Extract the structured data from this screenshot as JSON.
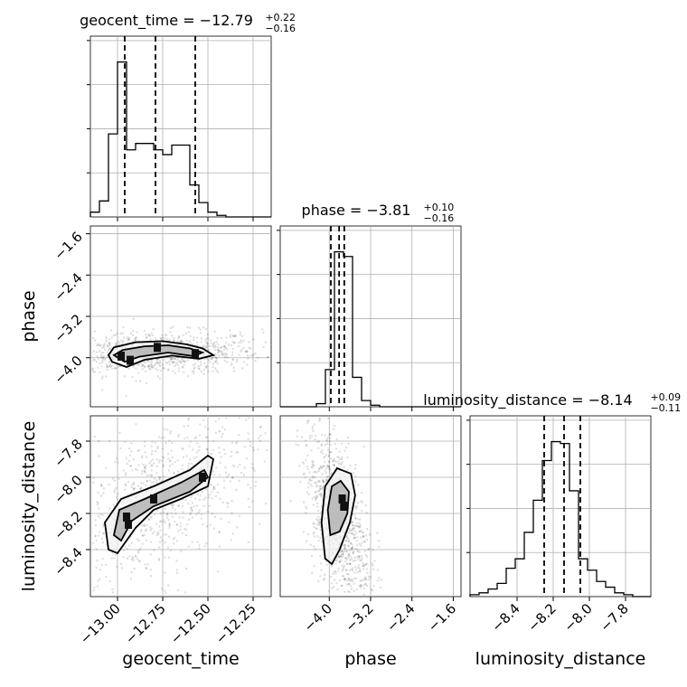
{
  "chart_data": {
    "type": "corner",
    "grid": true,
    "parameters": [
      {
        "name": "geocent_time",
        "median": "−12.79",
        "plus": "+0.22",
        "minus": "−0.16",
        "quantiles": [
          -12.96,
          -12.79,
          -12.57
        ],
        "range": [
          -13.15,
          -12.15
        ],
        "ticks": [
          -13.0,
          -12.75,
          -12.5,
          -12.25
        ],
        "tick_labels": [
          "−13.00",
          "−12.75",
          "−12.50",
          "−12.25"
        ]
      },
      {
        "name": "phase",
        "median": "−3.81",
        "plus": "+0.10",
        "minus": "−0.16",
        "quantiles": [
          -3.97,
          -3.81,
          -3.71
        ],
        "range": [
          -4.95,
          -1.45
        ],
        "ticks": [
          -4.0,
          -3.2,
          -2.4,
          -1.6
        ],
        "tick_labels": [
          "−4.0",
          "−3.2",
          "−2.4",
          "−1.6"
        ]
      },
      {
        "name": "luminosity_distance",
        "median": "−8.14",
        "plus": "+0.09",
        "minus": "−0.11",
        "quantiles": [
          -8.25,
          -8.14,
          -8.05
        ],
        "range": [
          -8.66,
          -7.66
        ],
        "ticks": [
          -8.4,
          -8.2,
          -8.0,
          -7.8
        ],
        "tick_labels": [
          "−8.4",
          "−8.2",
          "−8.0",
          "−7.8"
        ]
      }
    ],
    "histograms": [
      {
        "parameter": "geocent_time",
        "bin_edges": [
          -13.15,
          -13.1,
          -13.05,
          -13.0,
          -12.95,
          -12.9,
          -12.85,
          -12.8,
          -12.75,
          -12.7,
          -12.65,
          -12.6,
          -12.55,
          -12.5,
          -12.45,
          -12.4,
          -12.35,
          -12.3,
          -12.25,
          -12.2,
          -12.15
        ],
        "counts": [
          3,
          10,
          52,
          97,
          42,
          46,
          46,
          42,
          39,
          45,
          45,
          20,
          9,
          3,
          1,
          0,
          0,
          0,
          0,
          0
        ]
      },
      {
        "parameter": "phase",
        "bin_edges": [
          -4.95,
          -4.775,
          -4.6,
          -4.425,
          -4.25,
          -4.075,
          -3.9,
          -3.725,
          -3.55,
          -3.375,
          -3.2,
          -3.025,
          -2.85,
          -2.675,
          -2.5,
          -2.325,
          -2.15,
          -1.975,
          -1.8,
          -1.625,
          -1.45
        ],
        "counts": [
          0,
          0,
          0,
          0,
          2,
          24,
          100,
          97,
          19,
          4,
          1,
          0,
          0,
          0,
          0,
          0,
          0,
          0,
          0,
          0
        ]
      },
      {
        "parameter": "luminosity_distance",
        "bin_edges": [
          -8.66,
          -8.61,
          -8.56,
          -8.51,
          -8.46,
          -8.41,
          -8.36,
          -8.31,
          -8.26,
          -8.21,
          -8.16,
          -8.11,
          -8.06,
          -8.01,
          -7.96,
          -7.91,
          -7.86,
          -7.81,
          -7.76,
          -7.71,
          -7.66
        ],
        "counts": [
          1,
          2,
          4,
          7,
          15,
          20,
          34,
          51,
          72,
          82,
          81,
          56,
          20,
          14,
          8,
          5,
          2,
          1,
          0,
          0
        ]
      }
    ],
    "pair_panels": [
      {
        "x": "geocent_time",
        "y": "phase",
        "levels": [
          [
            [
              -13.05,
              -3.95
            ],
            [
              -13.02,
              -3.8
            ],
            [
              -12.9,
              -3.7
            ],
            [
              -12.75,
              -3.68
            ],
            [
              -12.62,
              -3.74
            ],
            [
              -12.53,
              -3.82
            ],
            [
              -12.47,
              -3.95
            ],
            [
              -12.55,
              -4.02
            ],
            [
              -12.7,
              -3.96
            ],
            [
              -12.85,
              -4.04
            ],
            [
              -12.95,
              -4.18
            ],
            [
              -13.03,
              -4.08
            ]
          ],
          [
            [
              -13.02,
              -3.95
            ],
            [
              -12.97,
              -3.85
            ],
            [
              -12.85,
              -3.78
            ],
            [
              -12.72,
              -3.76
            ],
            [
              -12.6,
              -3.82
            ],
            [
              -12.53,
              -3.9
            ],
            [
              -12.58,
              -3.97
            ],
            [
              -12.72,
              -3.9
            ],
            [
              -12.88,
              -3.98
            ],
            [
              -12.96,
              -4.08
            ]
          ]
        ],
        "peaks": [
          [
            -12.98,
            -3.97
          ],
          [
            -12.93,
            -4.05
          ],
          [
            -12.78,
            -3.8
          ],
          [
            -12.57,
            -3.92
          ]
        ]
      },
      {
        "x": "geocent_time",
        "y": "luminosity_distance",
        "levels": [
          [
            [
              -13.05,
              -8.4
            ],
            [
              -13.07,
              -8.25
            ],
            [
              -12.98,
              -8.12
            ],
            [
              -12.8,
              -8.05
            ],
            [
              -12.6,
              -7.96
            ],
            [
              -12.5,
              -7.88
            ],
            [
              -12.47,
              -7.9
            ],
            [
              -12.5,
              -8.05
            ],
            [
              -12.65,
              -8.12
            ],
            [
              -12.8,
              -8.18
            ],
            [
              -12.9,
              -8.28
            ],
            [
              -13.0,
              -8.42
            ]
          ],
          [
            [
              -13.02,
              -8.32
            ],
            [
              -12.99,
              -8.18
            ],
            [
              -12.85,
              -8.12
            ],
            [
              -12.65,
              -8.03
            ],
            [
              -12.52,
              -7.96
            ],
            [
              -12.5,
              -8.0
            ],
            [
              -12.6,
              -8.08
            ],
            [
              -12.8,
              -8.16
            ],
            [
              -12.92,
              -8.24
            ],
            [
              -12.98,
              -8.35
            ]
          ]
        ],
        "peaks": [
          [
            -12.95,
            -8.22
          ],
          [
            -12.94,
            -8.26
          ],
          [
            -12.8,
            -8.12
          ],
          [
            -12.53,
            -8.0
          ]
        ]
      },
      {
        "x": "phase",
        "y": "luminosity_distance",
        "levels": [
          [
            [
              -4.08,
              -8.45
            ],
            [
              -4.15,
              -8.25
            ],
            [
              -4.08,
              -8.05
            ],
            [
              -3.85,
              -7.95
            ],
            [
              -3.58,
              -7.98
            ],
            [
              -3.5,
              -8.1
            ],
            [
              -3.6,
              -8.25
            ],
            [
              -3.8,
              -8.4
            ],
            [
              -3.95,
              -8.48
            ]
          ],
          [
            [
              -3.98,
              -8.32
            ],
            [
              -4.03,
              -8.18
            ],
            [
              -3.95,
              -8.05
            ],
            [
              -3.78,
              -8.02
            ],
            [
              -3.62,
              -8.08
            ],
            [
              -3.65,
              -8.2
            ],
            [
              -3.8,
              -8.3
            ]
          ]
        ],
        "peaks": [
          [
            -3.75,
            -8.12
          ],
          [
            -3.72,
            -8.16
          ]
        ]
      }
    ]
  }
}
